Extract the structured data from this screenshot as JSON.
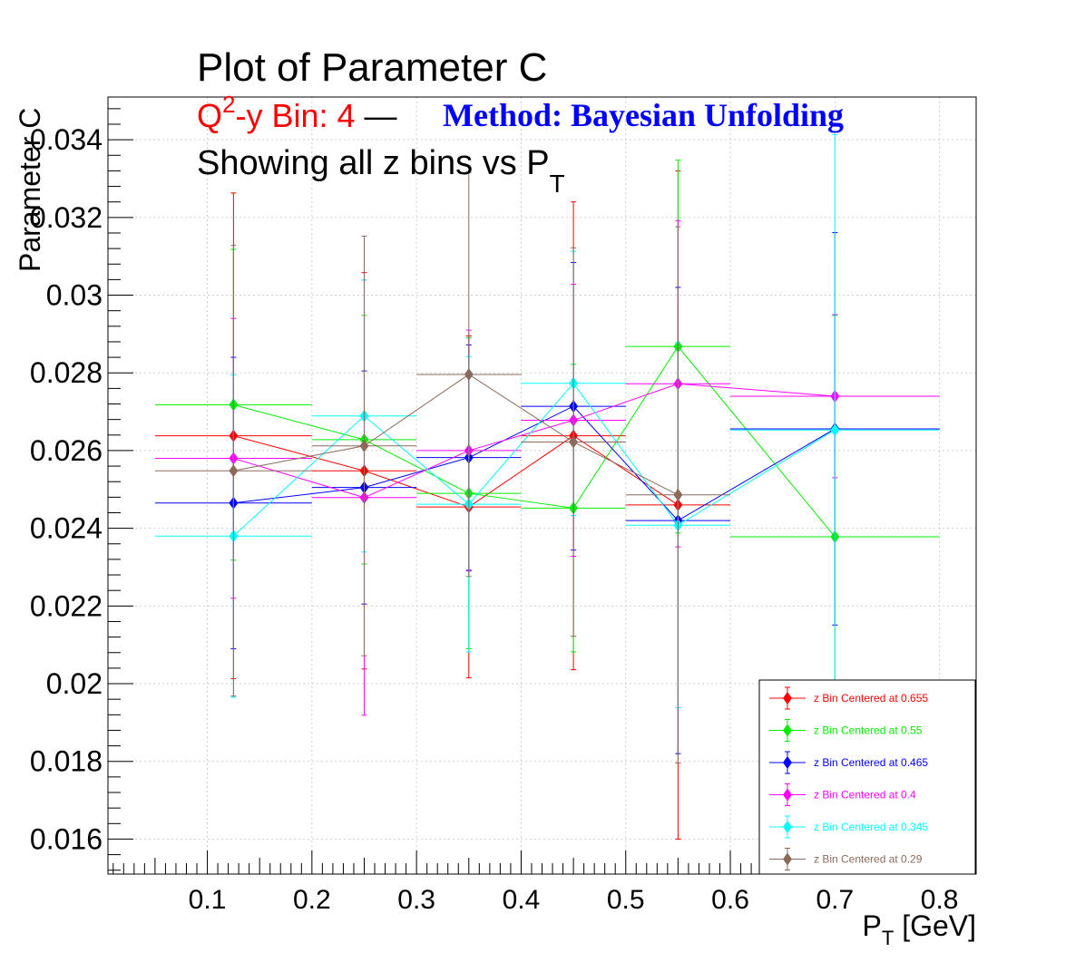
{
  "chart_data": {
    "type": "scatter",
    "title": "Plot of Parameter C",
    "subtitle": {
      "bin_prefix": "Q",
      "bin_sup": "2",
      "bin_text": "-y Bin: 4",
      "dash": " — ",
      "method": "Method: Bayesian Unfolding",
      "line3_text": "Showing all z bins vs P",
      "line3_sub": "T"
    },
    "xlabel": {
      "main": "P",
      "sub": "T",
      "rest": " [GeV]"
    },
    "ylabel": "Parameter C",
    "xlim": [
      0.005,
      0.835
    ],
    "ylim": [
      0.0151,
      0.0351
    ],
    "xticks": [
      "0.1",
      "0.2",
      "0.3",
      "0.4",
      "0.5",
      "0.6",
      "0.7",
      "0.8"
    ],
    "yticks": [
      "0.016",
      "0.018",
      "0.02",
      "0.022",
      "0.024",
      "0.026",
      "0.028",
      "0.03",
      "0.032",
      "0.034"
    ],
    "grid": true,
    "legend_position": "bottom-right",
    "series": [
      {
        "name": "z Bin Centered at 0.655",
        "color": "#ff0000",
        "points": [
          {
            "x": 0.125,
            "xlo": 0.05,
            "xhi": 0.2,
            "y": 0.02638,
            "err": 0.00625
          },
          {
            "x": 0.25,
            "xlo": 0.2,
            "xhi": 0.3,
            "y": 0.02548,
            "err": 0.0051
          },
          {
            "x": 0.35,
            "xlo": 0.3,
            "xhi": 0.4,
            "y": 0.02455,
            "err": 0.0044
          },
          {
            "x": 0.45,
            "xlo": 0.4,
            "xhi": 0.5,
            "y": 0.02638,
            "err": 0.00602
          },
          {
            "x": 0.55,
            "xlo": 0.5,
            "xhi": 0.6,
            "y": 0.0246,
            "err": 0.0086
          }
        ]
      },
      {
        "name": "z Bin Centered at 0.55",
        "color": "#00ee00",
        "points": [
          {
            "x": 0.125,
            "xlo": 0.05,
            "xhi": 0.2,
            "y": 0.02718,
            "err": 0.004
          },
          {
            "x": 0.25,
            "xlo": 0.2,
            "xhi": 0.3,
            "y": 0.02628,
            "err": 0.0032
          },
          {
            "x": 0.35,
            "xlo": 0.3,
            "xhi": 0.4,
            "y": 0.0249,
            "err": 0.004
          },
          {
            "x": 0.45,
            "xlo": 0.4,
            "xhi": 0.5,
            "y": 0.02452,
            "err": 0.0037
          },
          {
            "x": 0.55,
            "xlo": 0.5,
            "xhi": 0.6,
            "y": 0.02868,
            "err": 0.0048
          },
          {
            "x": 0.7,
            "xlo": 0.6,
            "xhi": 0.8,
            "y": 0.02378,
            "err": 0.0057
          }
        ]
      },
      {
        "name": "z Bin Centered at 0.465",
        "color": "#0000ff",
        "points": [
          {
            "x": 0.125,
            "xlo": 0.05,
            "xhi": 0.2,
            "y": 0.02465,
            "err": 0.00375
          },
          {
            "x": 0.25,
            "xlo": 0.2,
            "xhi": 0.3,
            "y": 0.02505,
            "err": 0.003
          },
          {
            "x": 0.35,
            "xlo": 0.3,
            "xhi": 0.4,
            "y": 0.02582,
            "err": 0.0029
          },
          {
            "x": 0.45,
            "xlo": 0.4,
            "xhi": 0.5,
            "y": 0.02714,
            "err": 0.0037
          },
          {
            "x": 0.55,
            "xlo": 0.5,
            "xhi": 0.6,
            "y": 0.0242,
            "err": 0.006
          },
          {
            "x": 0.7,
            "xlo": 0.6,
            "xhi": 0.8,
            "y": 0.02656,
            "err": 0.00505
          }
        ]
      },
      {
        "name": "z Bin Centered at 0.4",
        "color": "#ff00ff",
        "points": [
          {
            "x": 0.125,
            "xlo": 0.05,
            "xhi": 0.2,
            "y": 0.0258,
            "err": 0.0036
          },
          {
            "x": 0.25,
            "xlo": 0.2,
            "xhi": 0.3,
            "y": 0.02479,
            "err": 0.0056
          },
          {
            "x": 0.35,
            "xlo": 0.3,
            "xhi": 0.4,
            "y": 0.026,
            "err": 0.0031
          },
          {
            "x": 0.45,
            "xlo": 0.4,
            "xhi": 0.5,
            "y": 0.02678,
            "err": 0.0035
          },
          {
            "x": 0.55,
            "xlo": 0.5,
            "xhi": 0.6,
            "y": 0.02772,
            "err": 0.0042
          },
          {
            "x": 0.7,
            "xlo": 0.6,
            "xhi": 0.8,
            "y": 0.0274,
            "err": 0.0021
          }
        ]
      },
      {
        "name": "z Bin Centered at 0.345",
        "color": "#00ffff",
        "points": [
          {
            "x": 0.125,
            "xlo": 0.05,
            "xhi": 0.2,
            "y": 0.0238,
            "err": 0.00415
          },
          {
            "x": 0.25,
            "xlo": 0.2,
            "xhi": 0.3,
            "y": 0.02689,
            "err": 0.0035
          },
          {
            "x": 0.35,
            "xlo": 0.3,
            "xhi": 0.4,
            "y": 0.02462,
            "err": 0.0038
          },
          {
            "x": 0.45,
            "xlo": 0.4,
            "xhi": 0.5,
            "y": 0.02773,
            "err": 0.0034
          },
          {
            "x": 0.55,
            "xlo": 0.5,
            "xhi": 0.6,
            "y": 0.02408,
            "err": 0.0047
          },
          {
            "x": 0.7,
            "xlo": 0.6,
            "xhi": 0.8,
            "y": 0.02653,
            "err": 0.0076
          }
        ]
      },
      {
        "name": "z Bin Centered at 0.29",
        "color": "#8b6a5b",
        "points": [
          {
            "x": 0.125,
            "xlo": 0.05,
            "xhi": 0.2,
            "y": 0.02548,
            "err": 0.0058
          },
          {
            "x": 0.25,
            "xlo": 0.2,
            "xhi": 0.3,
            "y": 0.02612,
            "err": 0.0054
          },
          {
            "x": 0.35,
            "xlo": 0.3,
            "xhi": 0.4,
            "y": 0.02796,
            "err": 0.0052
          },
          {
            "x": 0.45,
            "xlo": 0.4,
            "xhi": 0.5,
            "y": 0.02622,
            "err": 0.005
          },
          {
            "x": 0.55,
            "xlo": 0.5,
            "xhi": 0.6,
            "y": 0.02486,
            "err": 0.0069
          }
        ]
      }
    ]
  }
}
